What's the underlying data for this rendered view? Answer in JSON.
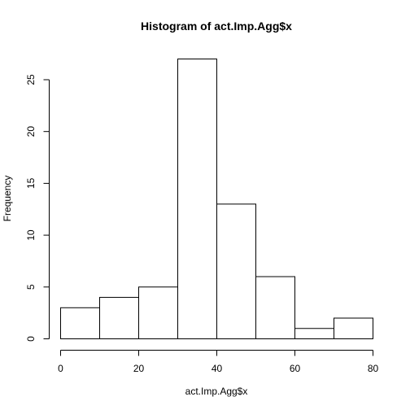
{
  "chart_data": {
    "type": "bar",
    "title": "Histogram of act.Imp.Agg$x",
    "xlabel": "act.Imp.Agg$x",
    "ylabel": "Frequency",
    "bin_edges": [
      0,
      10,
      20,
      30,
      40,
      50,
      60,
      70,
      80
    ],
    "values": [
      3,
      4,
      5,
      27,
      13,
      6,
      1,
      2
    ],
    "xlim": [
      0,
      80
    ],
    "ylim": [
      0,
      27
    ],
    "x_ticks": [
      0,
      20,
      40,
      60,
      80
    ],
    "y_ticks": [
      0,
      5,
      10,
      15,
      20,
      25
    ],
    "grid": false,
    "bar_fill": "#ffffff",
    "bar_stroke": "#000000"
  }
}
